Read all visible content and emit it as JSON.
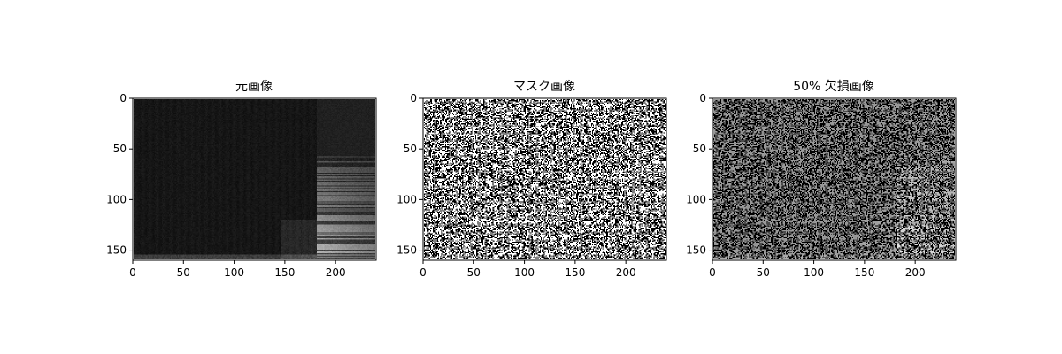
{
  "figure": {
    "panels": [
      {
        "title": "元画像",
        "kind": "spectrogram",
        "image_size": [
          240,
          160
        ],
        "xticks": [
          0,
          50,
          100,
          150,
          200
        ],
        "yticks": [
          0,
          50,
          100,
          150
        ],
        "xlim": [
          0,
          240
        ],
        "ylim": [
          160,
          0
        ],
        "colormap": "gray"
      },
      {
        "title": "マスク画像",
        "kind": "binary-mask",
        "mask_ratio": 0.5,
        "image_size": [
          240,
          160
        ],
        "xticks": [
          0,
          50,
          100,
          150,
          200
        ],
        "yticks": [
          0,
          50,
          100,
          150
        ],
        "xlim": [
          0,
          240
        ],
        "ylim": [
          160,
          0
        ],
        "colormap": "gray"
      },
      {
        "title": "50% 欠損画像",
        "kind": "masked-image",
        "mask_ratio": 0.5,
        "image_size": [
          240,
          160
        ],
        "xticks": [
          0,
          50,
          100,
          150,
          200
        ],
        "yticks": [
          0,
          50,
          100,
          150
        ],
        "xlim": [
          0,
          240
        ],
        "ylim": [
          160,
          0
        ],
        "colormap": "gray"
      }
    ]
  }
}
